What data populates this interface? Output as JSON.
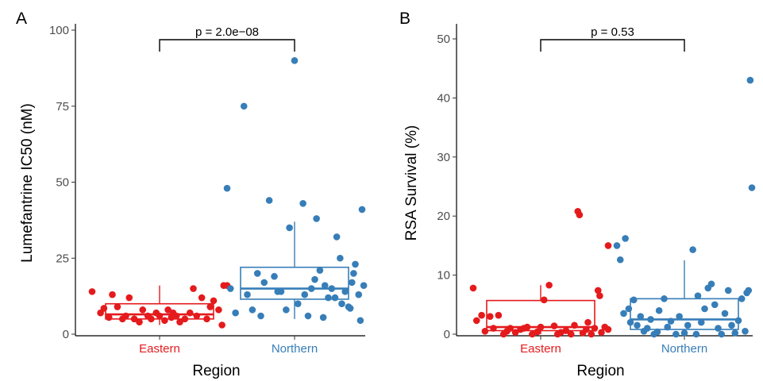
{
  "chart_data": [
    {
      "panel": "A",
      "type": "box-jitter",
      "ylabel": "Lumefantrine IC50 (nM)",
      "xlabel": "Region",
      "ylim": [
        0,
        100
      ],
      "yticks": [
        0,
        25,
        50,
        75,
        100
      ],
      "categories": [
        "Eastern",
        "Northern"
      ],
      "colors": {
        "Eastern": "#e41a1c",
        "Northern": "#377eb8"
      },
      "comparison": {
        "label": "p = 2.0e−08"
      },
      "boxes": {
        "Eastern": {
          "whisker_low": 3,
          "q1": 5,
          "median": 6.5,
          "q3": 10,
          "whisker_high": 16
        },
        "Northern": {
          "whisker_low": 5,
          "q1": 11.5,
          "median": 15,
          "q3": 22,
          "whisker_high": 37
        }
      },
      "points": {
        "Eastern": [
          [
            -0.4,
            14
          ],
          [
            -0.35,
            7
          ],
          [
            -0.3,
            5.5
          ],
          [
            -0.25,
            9
          ],
          [
            -0.2,
            6
          ],
          [
            -0.18,
            12
          ],
          [
            -0.15,
            5
          ],
          [
            -0.12,
            4
          ],
          [
            -0.1,
            8
          ],
          [
            -0.07,
            6
          ],
          [
            -0.05,
            5
          ],
          [
            -0.02,
            7
          ],
          [
            0.0,
            6
          ],
          [
            0.03,
            4.5
          ],
          [
            0.05,
            8
          ],
          [
            0.07,
            5.5
          ],
          [
            0.1,
            6
          ],
          [
            0.12,
            4
          ],
          [
            0.15,
            5
          ],
          [
            0.18,
            7
          ],
          [
            0.2,
            15
          ],
          [
            0.22,
            6
          ],
          [
            0.25,
            12
          ],
          [
            0.28,
            5
          ],
          [
            0.3,
            9
          ],
          [
            0.32,
            11
          ],
          [
            0.35,
            8
          ],
          [
            0.37,
            3
          ],
          [
            0.38,
            16
          ],
          [
            0.4,
            16
          ],
          [
            -0.33,
            8.5
          ],
          [
            -0.28,
            13
          ],
          [
            -0.22,
            5
          ],
          [
            0.08,
            7
          ]
        ],
        "Northern": [
          [
            -0.4,
            48
          ],
          [
            -0.38,
            15
          ],
          [
            -0.35,
            7
          ],
          [
            -0.3,
            75
          ],
          [
            -0.28,
            13
          ],
          [
            -0.25,
            8
          ],
          [
            -0.22,
            20
          ],
          [
            -0.2,
            6
          ],
          [
            -0.18,
            17
          ],
          [
            -0.15,
            44
          ],
          [
            -0.12,
            19
          ],
          [
            -0.1,
            14
          ],
          [
            -0.05,
            8
          ],
          [
            -0.03,
            35
          ],
          [
            0.0,
            90
          ],
          [
            0.02,
            10
          ],
          [
            0.05,
            43
          ],
          [
            0.08,
            6
          ],
          [
            0.1,
            15
          ],
          [
            0.12,
            18
          ],
          [
            0.13,
            38
          ],
          [
            0.15,
            21
          ],
          [
            0.17,
            5.5
          ],
          [
            0.18,
            16
          ],
          [
            0.2,
            12
          ],
          [
            0.22,
            15
          ],
          [
            0.25,
            32
          ],
          [
            0.27,
            25
          ],
          [
            0.28,
            10
          ],
          [
            0.3,
            14
          ],
          [
            0.32,
            9
          ],
          [
            0.34,
            17
          ],
          [
            0.35,
            20
          ],
          [
            0.36,
            23
          ],
          [
            0.38,
            13
          ],
          [
            0.39,
            4.5
          ],
          [
            0.4,
            41
          ],
          [
            0.41,
            16
          ],
          [
            -0.08,
            14
          ],
          [
            0.06,
            13
          ],
          [
            0.24,
            12
          ],
          [
            0.33,
            8.5
          ]
        ]
      }
    },
    {
      "panel": "B",
      "type": "box-jitter",
      "ylabel": "RSA Survival (%)",
      "xlabel": "Region",
      "ylim": [
        0,
        50
      ],
      "yticks": [
        0,
        10,
        20,
        30,
        40,
        50
      ],
      "categories": [
        "Eastern",
        "Northern"
      ],
      "colors": {
        "Eastern": "#e41a1c",
        "Northern": "#377eb8"
      },
      "comparison": {
        "label": "p = 0.53"
      },
      "boxes": {
        "Eastern": {
          "whisker_low": 0,
          "q1": 0.6,
          "median": 1.2,
          "q3": 5.7,
          "whisker_high": 8.3
        },
        "Northern": {
          "whisker_low": 0,
          "q1": 0.8,
          "median": 2.5,
          "q3": 6,
          "whisker_high": 12.5
        }
      },
      "points": {
        "Eastern": [
          [
            -0.4,
            7.8
          ],
          [
            -0.38,
            2.3
          ],
          [
            -0.35,
            3.2
          ],
          [
            -0.33,
            0.5
          ],
          [
            -0.3,
            3
          ],
          [
            -0.28,
            1
          ],
          [
            -0.25,
            3.2
          ],
          [
            -0.22,
            0
          ],
          [
            -0.2,
            0.5
          ],
          [
            -0.18,
            1
          ],
          [
            -0.15,
            0.3
          ],
          [
            -0.12,
            0.8
          ],
          [
            -0.1,
            1
          ],
          [
            -0.08,
            1.2
          ],
          [
            -0.05,
            0
          ],
          [
            -0.02,
            0.4
          ],
          [
            0.0,
            1.2
          ],
          [
            0.02,
            5.8
          ],
          [
            0.05,
            8.3
          ],
          [
            0.08,
            1.4
          ],
          [
            0.1,
            0
          ],
          [
            0.12,
            0.3
          ],
          [
            0.15,
            0.6
          ],
          [
            0.18,
            0
          ],
          [
            0.2,
            1.5
          ],
          [
            0.22,
            20.8
          ],
          [
            0.23,
            20.2
          ],
          [
            0.25,
            0.2
          ],
          [
            0.27,
            0.8
          ],
          [
            0.28,
            2
          ],
          [
            0.3,
            0
          ],
          [
            0.32,
            1
          ],
          [
            0.34,
            7.4
          ],
          [
            0.35,
            6.5
          ],
          [
            0.36,
            0.3
          ],
          [
            0.38,
            1.2
          ],
          [
            0.4,
            15
          ],
          [
            0.4,
            0.8
          ]
        ],
        "Northern": [
          [
            -0.4,
            15
          ],
          [
            -0.38,
            12.6
          ],
          [
            -0.35,
            16.2
          ],
          [
            -0.33,
            4.3
          ],
          [
            -0.32,
            2
          ],
          [
            -0.3,
            5.8
          ],
          [
            -0.28,
            1.5
          ],
          [
            -0.26,
            3
          ],
          [
            -0.24,
            0.5
          ],
          [
            -0.22,
            1
          ],
          [
            -0.2,
            2.5
          ],
          [
            -0.18,
            0
          ],
          [
            -0.15,
            4
          ],
          [
            -0.12,
            6
          ],
          [
            -0.1,
            1.2
          ],
          [
            -0.08,
            2.2
          ],
          [
            -0.05,
            0
          ],
          [
            -0.03,
            3
          ],
          [
            0.0,
            0.2
          ],
          [
            0.02,
            1.5
          ],
          [
            0.05,
            14.3
          ],
          [
            0.07,
            0
          ],
          [
            0.08,
            6.5
          ],
          [
            0.1,
            2
          ],
          [
            0.12,
            4.3
          ],
          [
            0.14,
            7.8
          ],
          [
            0.16,
            8.5
          ],
          [
            0.18,
            5
          ],
          [
            0.2,
            1
          ],
          [
            0.22,
            0
          ],
          [
            0.24,
            3.5
          ],
          [
            0.26,
            7.4
          ],
          [
            0.28,
            1.5
          ],
          [
            0.3,
            0.2
          ],
          [
            0.32,
            2.3
          ],
          [
            0.34,
            6
          ],
          [
            0.36,
            0.5
          ],
          [
            0.37,
            7
          ],
          [
            0.38,
            7.4
          ],
          [
            0.39,
            43
          ],
          [
            0.4,
            24.8
          ],
          [
            -0.36,
            3.5
          ],
          [
            -0.16,
            0.4
          ]
        ]
      }
    }
  ]
}
